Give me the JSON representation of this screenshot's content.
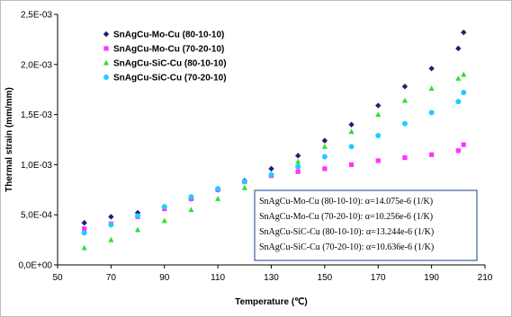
{
  "chart_data": {
    "type": "scatter",
    "title": "",
    "xlabel": "Temperature (℃)",
    "ylabel": "Thermal strain (mm/mm)",
    "xlim": [
      50,
      210
    ],
    "ylim": [
      0,
      0.0025
    ],
    "x_ticks": [
      "50",
      "70",
      "90",
      "110",
      "130",
      "150",
      "170",
      "190",
      "210"
    ],
    "y_ticks": [
      "0,0E+00",
      "5,0E-04",
      "1,0E-03",
      "1,5E-03",
      "2,0E-03",
      "2,5E-03"
    ],
    "grid": false,
    "legend_position": "top-left",
    "series": [
      {
        "name": "SnAgCu-Mo-Cu (80-10-10)",
        "color": "#1f1f7a",
        "marker": "diamond",
        "x": [
          60,
          70,
          80,
          90,
          100,
          110,
          120,
          130,
          140,
          150,
          160,
          170,
          180,
          190,
          200,
          202
        ],
        "y": [
          0.00042,
          0.00048,
          0.00052,
          0.00058,
          0.00066,
          0.00075,
          0.00084,
          0.00096,
          0.00109,
          0.00124,
          0.0014,
          0.00159,
          0.00178,
          0.00196,
          0.00216,
          0.00232
        ]
      },
      {
        "name": "SnAgCu-Mo-Cu (70-20-10)",
        "color": "#ff33ff",
        "marker": "square",
        "x": [
          60,
          70,
          80,
          90,
          100,
          110,
          120,
          130,
          140,
          150,
          160,
          170,
          180,
          190,
          200,
          202
        ],
        "y": [
          0.00036,
          0.00041,
          0.00048,
          0.00056,
          0.00066,
          0.00075,
          0.00083,
          0.00089,
          0.00093,
          0.00096,
          0.001,
          0.00104,
          0.00107,
          0.0011,
          0.00114,
          0.0012
        ]
      },
      {
        "name": "SnAgCu-SiC-Cu (80-10-10)",
        "color": "#33dd33",
        "marker": "triangle",
        "x": [
          60,
          70,
          80,
          90,
          100,
          110,
          120,
          130,
          140,
          150,
          160,
          170,
          180,
          190,
          200,
          202
        ],
        "y": [
          0.00017,
          0.00025,
          0.00035,
          0.00044,
          0.00055,
          0.00066,
          0.00077,
          0.0009,
          0.00103,
          0.00118,
          0.00133,
          0.0015,
          0.00164,
          0.00176,
          0.00186,
          0.0019
        ]
      },
      {
        "name": "SnAgCu-SiC-Cu (70-20-10)",
        "color": "#22ccff",
        "marker": "circle",
        "x": [
          60,
          70,
          80,
          90,
          100,
          110,
          120,
          130,
          140,
          150,
          160,
          170,
          180,
          190,
          200,
          202
        ],
        "y": [
          0.00032,
          0.0004,
          0.00049,
          0.00058,
          0.00068,
          0.00076,
          0.00083,
          0.0009,
          0.00098,
          0.00108,
          0.00118,
          0.00129,
          0.00141,
          0.00152,
          0.00163,
          0.00172
        ]
      }
    ],
    "annotations": [
      "SnAgCu-Mo-Cu (80-10-10): α=14.075e-6 (1/K)",
      "SnAgCu-Mo-Cu (70-20-10): α=10.256e-6 (1/K)",
      "SnAgCu-SiC-Cu (80-10-10): α=13.244e-6 (1/K)",
      "SnAgCu-SiC-Cu (70-20-10): α=10.636e-6 (1/K)"
    ]
  }
}
